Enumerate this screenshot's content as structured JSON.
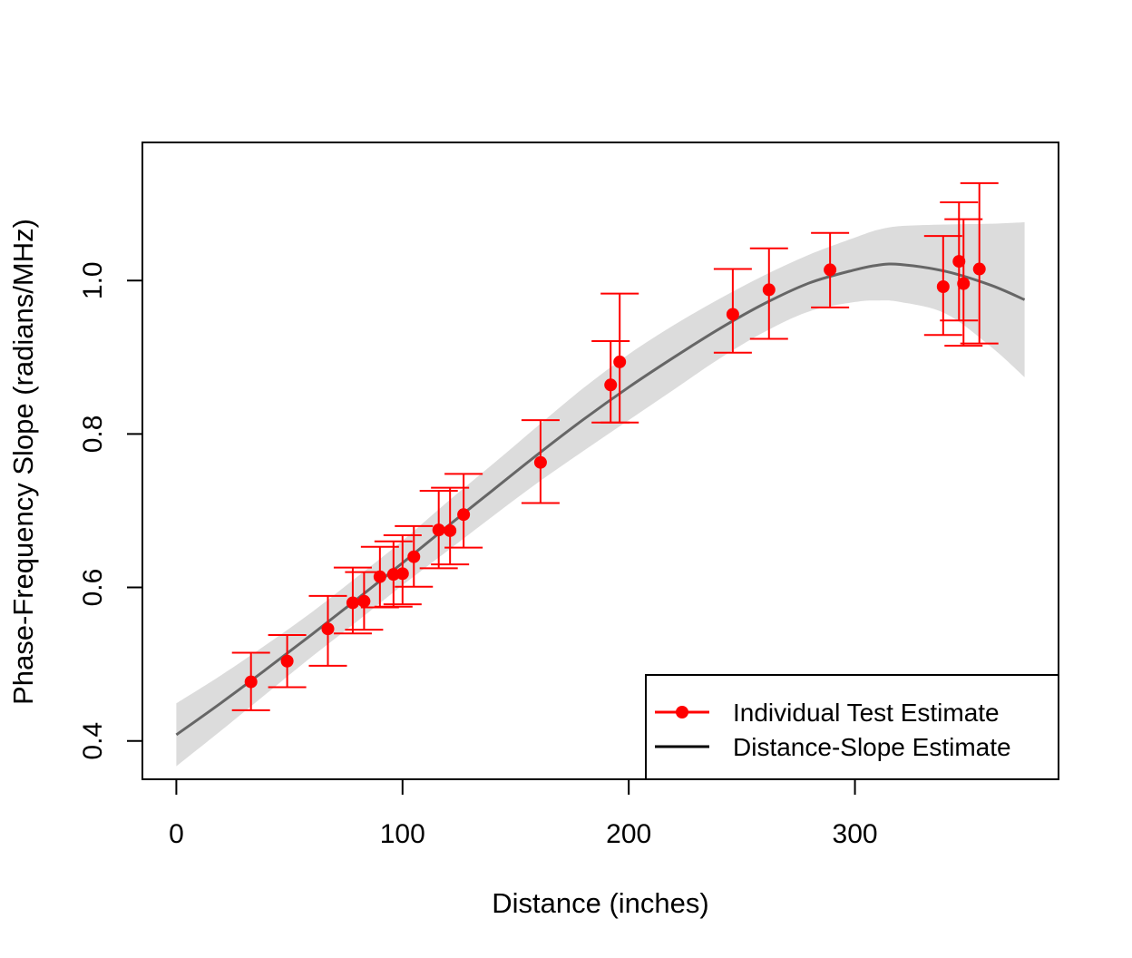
{
  "chart_data": {
    "type": "scatter",
    "title": "",
    "xlabel": "Distance (inches)",
    "ylabel": "Phase-Frequency Slope (radians/MHz)",
    "xlim": [
      -15,
      390
    ],
    "ylim": [
      0.35,
      1.18
    ],
    "xticks": [
      0,
      100,
      200,
      300
    ],
    "yticks": [
      0.4,
      0.6,
      0.8,
      1.0
    ],
    "xtick_labels": [
      "0",
      "100",
      "200",
      "300"
    ],
    "ytick_labels": [
      "0.4",
      "0.6",
      "0.8",
      "1.0"
    ],
    "legend_position": "bottom-right",
    "colors": {
      "points": "#ff0000",
      "curve": "#666666",
      "band": "#dcdcdc"
    },
    "series": [
      {
        "name": "Individual Test Estimate",
        "type": "errorbar",
        "points": [
          {
            "x": 33,
            "y": 0.477,
            "lo": 0.44,
            "hi": 0.515
          },
          {
            "x": 49,
            "y": 0.504,
            "lo": 0.47,
            "hi": 0.538
          },
          {
            "x": 67,
            "y": 0.546,
            "lo": 0.498,
            "hi": 0.589
          },
          {
            "x": 78,
            "y": 0.58,
            "lo": 0.54,
            "hi": 0.626
          },
          {
            "x": 83,
            "y": 0.582,
            "lo": 0.545,
            "hi": 0.62
          },
          {
            "x": 90,
            "y": 0.614,
            "lo": 0.574,
            "hi": 0.653
          },
          {
            "x": 96,
            "y": 0.617,
            "lo": 0.575,
            "hi": 0.66
          },
          {
            "x": 100,
            "y": 0.618,
            "lo": 0.578,
            "hi": 0.668
          },
          {
            "x": 105,
            "y": 0.64,
            "lo": 0.601,
            "hi": 0.68
          },
          {
            "x": 116,
            "y": 0.675,
            "lo": 0.625,
            "hi": 0.726
          },
          {
            "x": 121,
            "y": 0.674,
            "lo": 0.63,
            "hi": 0.73
          },
          {
            "x": 127,
            "y": 0.695,
            "lo": 0.652,
            "hi": 0.748
          },
          {
            "x": 161,
            "y": 0.763,
            "lo": 0.71,
            "hi": 0.818
          },
          {
            "x": 192,
            "y": 0.864,
            "lo": 0.815,
            "hi": 0.921
          },
          {
            "x": 196,
            "y": 0.894,
            "lo": 0.815,
            "hi": 0.983
          },
          {
            "x": 246,
            "y": 0.956,
            "lo": 0.906,
            "hi": 1.015
          },
          {
            "x": 262,
            "y": 0.988,
            "lo": 0.924,
            "hi": 1.042
          },
          {
            "x": 289,
            "y": 1.014,
            "lo": 0.965,
            "hi": 1.062
          },
          {
            "x": 339,
            "y": 0.992,
            "lo": 0.929,
            "hi": 1.058
          },
          {
            "x": 346,
            "y": 1.025,
            "lo": 0.948,
            "hi": 1.102
          },
          {
            "x": 348,
            "y": 0.996,
            "lo": 0.915,
            "hi": 1.08
          },
          {
            "x": 355,
            "y": 1.015,
            "lo": 0.918,
            "hi": 1.127
          }
        ]
      },
      {
        "name": "Distance-Slope Estimate",
        "type": "line",
        "x": [
          0,
          20,
          40,
          60,
          80,
          100,
          120,
          140,
          160,
          180,
          200,
          220,
          240,
          260,
          280,
          300,
          310,
          320,
          340,
          360,
          375
        ],
        "y": [
          0.408,
          0.45,
          0.494,
          0.539,
          0.585,
          0.632,
          0.68,
          0.727,
          0.774,
          0.819,
          0.861,
          0.9,
          0.937,
          0.97,
          0.997,
          1.014,
          1.02,
          1.021,
          1.012,
          0.994,
          0.975
        ],
        "band_lo": [
          0.367,
          0.414,
          0.462,
          0.51,
          0.556,
          0.603,
          0.648,
          0.693,
          0.737,
          0.778,
          0.818,
          0.858,
          0.898,
          0.933,
          0.96,
          0.972,
          0.974,
          0.972,
          0.957,
          0.914,
          0.874
        ],
        "band_hi": [
          0.449,
          0.486,
          0.526,
          0.568,
          0.614,
          0.661,
          0.712,
          0.761,
          0.811,
          0.86,
          0.904,
          0.942,
          0.976,
          1.007,
          1.034,
          1.056,
          1.066,
          1.071,
          1.073,
          1.074,
          1.076
        ]
      }
    ]
  }
}
